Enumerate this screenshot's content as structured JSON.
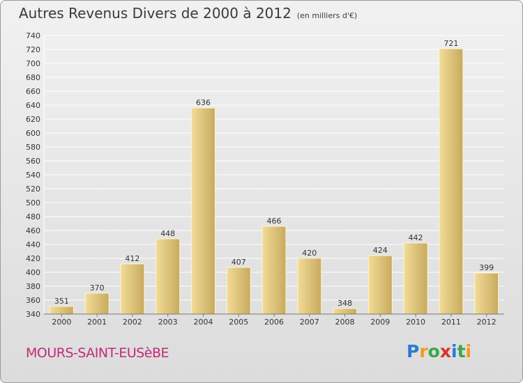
{
  "title": "Autres Revenus Divers de 2000 à 2012",
  "unit_note": "(en milliers d'€)",
  "town": "MOURS-SAINT-EUSèBE",
  "logo": {
    "letters": [
      "P",
      "r",
      "o",
      "x",
      "i",
      "t",
      "i"
    ],
    "colors": [
      "#2a7bd4",
      "#f29a1e",
      "#3aa54a",
      "#d6332a",
      "#2a7bd4",
      "#3aa54a",
      "#f29a1e"
    ]
  },
  "colors": {
    "bar_light": "#f2dc98",
    "bar_dark": "#c7aa5e",
    "grid": "#ffffff",
    "text": "#333333"
  },
  "chart_data": {
    "type": "bar",
    "categories": [
      "2000",
      "2001",
      "2002",
      "2003",
      "2004",
      "2005",
      "2006",
      "2007",
      "2008",
      "2009",
      "2010",
      "2011",
      "2012"
    ],
    "values": [
      351,
      370,
      412,
      448,
      636,
      407,
      466,
      420,
      348,
      424,
      442,
      721,
      399
    ],
    "ylim": [
      340,
      740
    ],
    "yticks": [
      340,
      360,
      380,
      400,
      420,
      440,
      460,
      480,
      500,
      520,
      540,
      560,
      580,
      600,
      620,
      640,
      660,
      680,
      700,
      720,
      740
    ],
    "grid": true
  }
}
